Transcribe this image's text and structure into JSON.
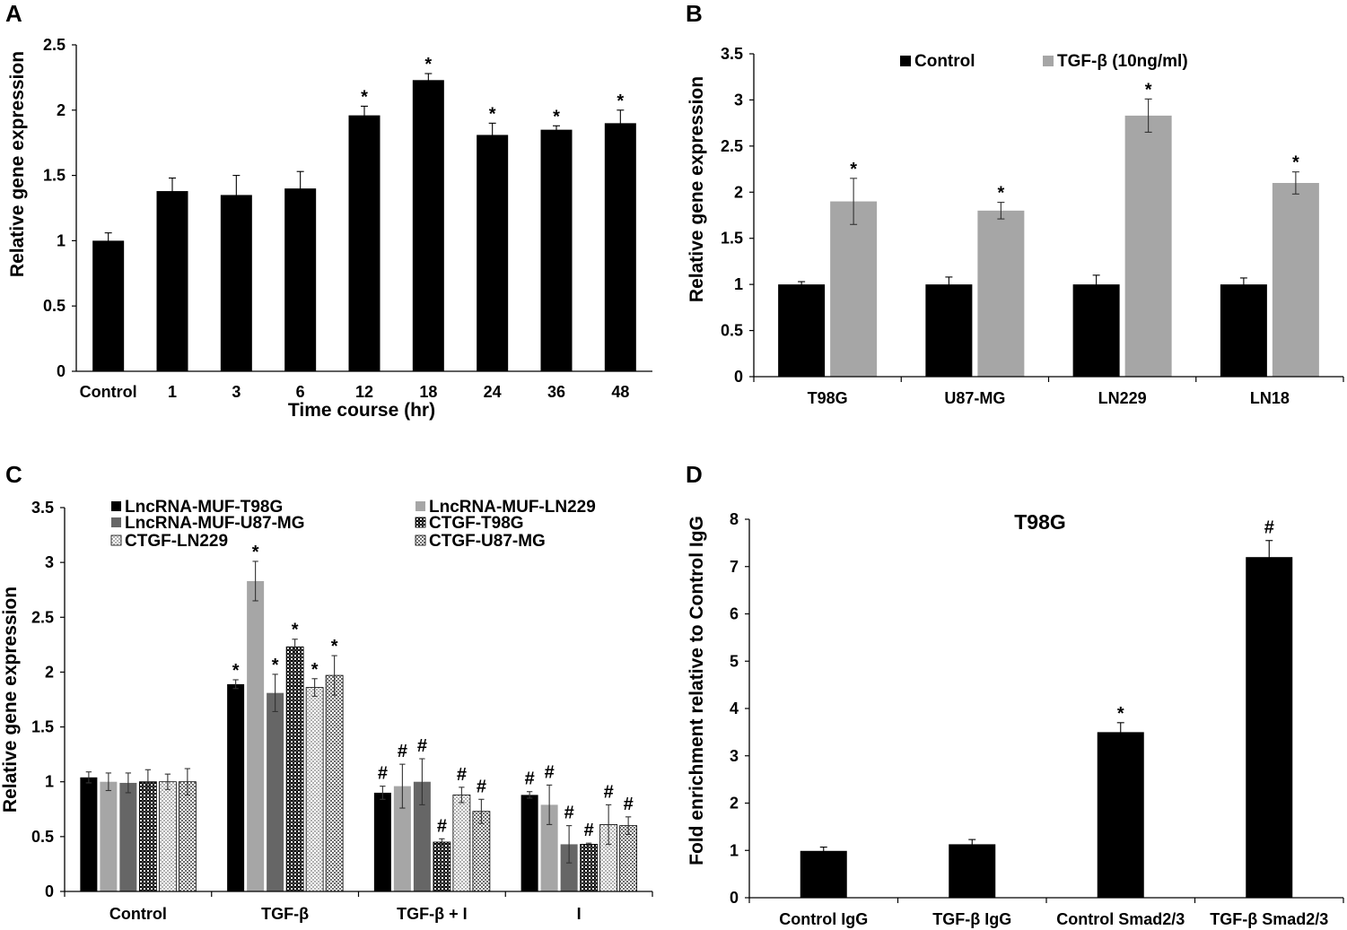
{
  "figure": {
    "panels": [
      "A",
      "B",
      "C",
      "D"
    ]
  },
  "chart_data": [
    {
      "id": "A",
      "type": "bar",
      "title": "",
      "ylabel": "Relative gene expression",
      "xlabel": "Time course (hr)",
      "ylim": [
        0,
        2.5
      ],
      "yticks": [
        0,
        0.5,
        1,
        1.5,
        2,
        2.5
      ],
      "ytick_labels": [
        "0",
        "0.5",
        "1",
        "1.5",
        "2",
        "2.5"
      ],
      "categories": [
        "Control",
        "1",
        "3",
        "6",
        "12",
        "18",
        "24",
        "36",
        "48"
      ],
      "series": [
        {
          "name": "Expression",
          "color": "#000000",
          "values": [
            1.0,
            1.38,
            1.35,
            1.4,
            1.96,
            2.23,
            1.81,
            1.85,
            1.9
          ],
          "errors": [
            0.06,
            0.1,
            0.15,
            0.13,
            0.07,
            0.05,
            0.09,
            0.03,
            0.1
          ],
          "marks": [
            "",
            "",
            "",
            "",
            "*",
            "*",
            "*",
            "*",
            "*"
          ]
        }
      ]
    },
    {
      "id": "B",
      "type": "bar",
      "title": "",
      "ylabel": "Relative gene expression",
      "xlabel": "",
      "ylim": [
        0,
        3.5
      ],
      "yticks": [
        0,
        0.5,
        1,
        1.5,
        2,
        2.5,
        3,
        3.5
      ],
      "ytick_labels": [
        "0",
        "0.5",
        "1",
        "1.5",
        "2",
        "2.5",
        "3",
        "3.5"
      ],
      "categories": [
        "T98G",
        "U87-MG",
        "LN229",
        "LN18"
      ],
      "legend": "top",
      "series": [
        {
          "name": "Control",
          "color": "#000000",
          "values": [
            1.0,
            1.0,
            1.0,
            1.0
          ],
          "errors": [
            0.03,
            0.08,
            0.1,
            0.07
          ],
          "marks": [
            "",
            "",
            "",
            ""
          ]
        },
        {
          "name": "TGF-β (10ng/ml)",
          "color": "#a6a6a6",
          "values": [
            1.9,
            1.8,
            2.83,
            2.1
          ],
          "errors": [
            0.25,
            0.09,
            0.18,
            0.12
          ],
          "marks": [
            "*",
            "*",
            "*",
            "*"
          ]
        }
      ]
    },
    {
      "id": "C",
      "type": "bar",
      "title": "",
      "ylabel": "Relative gene expression",
      "xlabel": "",
      "ylim": [
        0,
        3.5
      ],
      "yticks": [
        0,
        0.5,
        1,
        1.5,
        2,
        2.5,
        3,
        3.5
      ],
      "ytick_labels": [
        "0",
        "0.5",
        "1",
        "1.5",
        "2",
        "2.5",
        "3",
        "3.5"
      ],
      "categories": [
        "Control",
        "TGF-β",
        "TGF-β + I",
        "I"
      ],
      "legend": "top-left",
      "series": [
        {
          "name": "LncRNA-MUF-T98G",
          "color": "#000000",
          "pattern": "solid",
          "values": [
            1.04,
            1.89,
            0.9,
            0.88
          ],
          "errors": [
            0.05,
            0.04,
            0.06,
            0.03
          ],
          "marks": [
            "",
            "*",
            "#",
            "#"
          ]
        },
        {
          "name": "LncRNA-MUF-LN229",
          "color": "#a6a6a6",
          "pattern": "solid",
          "values": [
            1.0,
            2.83,
            0.96,
            0.79
          ],
          "errors": [
            0.08,
            0.18,
            0.2,
            0.18
          ],
          "marks": [
            "",
            "*",
            "#",
            "#"
          ]
        },
        {
          "name": "LncRNA-MUF-U87-MG",
          "color": "#666666",
          "pattern": "solid",
          "values": [
            0.99,
            1.81,
            1.0,
            0.43
          ],
          "errors": [
            0.09,
            0.17,
            0.21,
            0.17
          ],
          "marks": [
            "",
            "*",
            "#",
            "#"
          ]
        },
        {
          "name": "CTGF-T98G",
          "color": "#000000",
          "pattern": "check-dark",
          "values": [
            1.0,
            2.23,
            0.45,
            0.43
          ],
          "errors": [
            0.11,
            0.07,
            0.03,
            0.01
          ],
          "marks": [
            "",
            "*",
            "#",
            "#"
          ]
        },
        {
          "name": "CTGF-LN229",
          "color": "#bfbfbf",
          "pattern": "check-light",
          "values": [
            1.0,
            1.86,
            0.88,
            0.61
          ],
          "errors": [
            0.07,
            0.08,
            0.07,
            0.18
          ],
          "marks": [
            "",
            "*",
            "#",
            "#"
          ]
        },
        {
          "name": "CTGF-U87-MG",
          "color": "#808080",
          "pattern": "check-mid",
          "values": [
            1.0,
            1.97,
            0.73,
            0.6
          ],
          "errors": [
            0.12,
            0.18,
            0.11,
            0.08
          ],
          "marks": [
            "",
            "*",
            "#",
            "#"
          ]
        }
      ]
    },
    {
      "id": "D",
      "type": "bar",
      "title": "T98G",
      "ylabel": "Fold enrichment relative to Control IgG",
      "xlabel": "",
      "ylim": [
        0,
        8
      ],
      "yticks": [
        0,
        1,
        2,
        3,
        4,
        5,
        6,
        7,
        8
      ],
      "ytick_labels": [
        "0",
        "1",
        "2",
        "3",
        "4",
        "5",
        "6",
        "7",
        "8"
      ],
      "categories": [
        "Control IgG",
        "TGF-β IgG",
        "Control Smad2/3",
        "TGF-β Smad2/3"
      ],
      "series": [
        {
          "name": "Fold enrichment",
          "color": "#000000",
          "values": [
            0.99,
            1.13,
            3.5,
            7.2
          ],
          "errors": [
            0.08,
            0.1,
            0.2,
            0.35
          ],
          "marks": [
            "",
            "",
            "*",
            "#"
          ]
        }
      ]
    }
  ]
}
